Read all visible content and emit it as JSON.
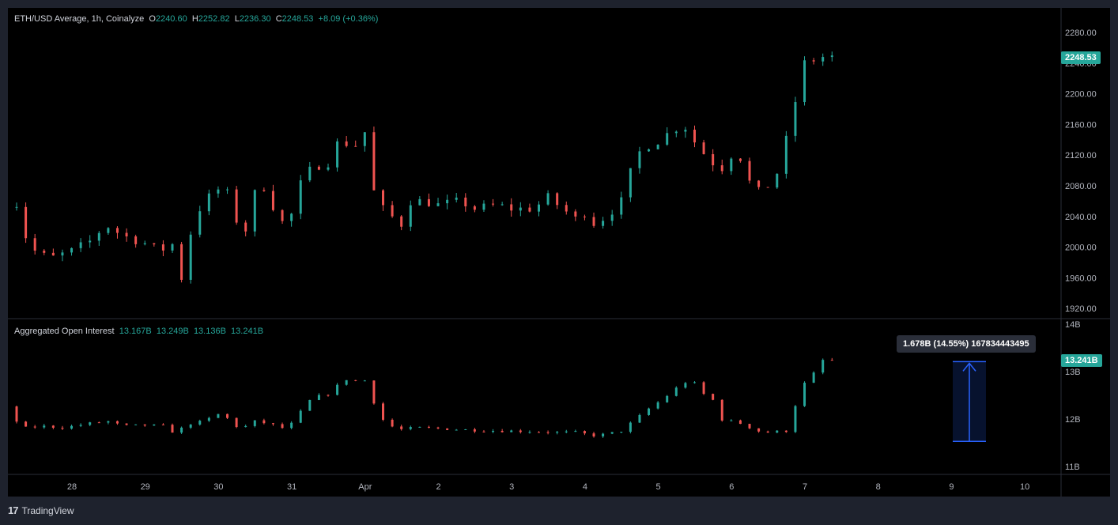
{
  "price_legend": {
    "title": "ETH/USD Average, 1h, Coinalyze",
    "open_label": "O",
    "open": "2240.60",
    "high_label": "H",
    "high": "2252.82",
    "low_label": "L",
    "low": "2236.30",
    "close_label": "C",
    "close": "2248.53",
    "change": "+8.09 (+0.36%)"
  },
  "oi_legend": {
    "title": "Aggregated Open Interest",
    "v1": "13.167B",
    "v2": "13.249B",
    "v3": "13.136B",
    "v4": "13.241B"
  },
  "price_tag": "2248.53",
  "oi_tag": "13.241B",
  "measure": {
    "label": "1.678B (14.55%) 167834443495",
    "value": 1.678,
    "from": 11.53,
    "to": 13.21
  },
  "brand": {
    "name": "TradingView",
    "mark": "17"
  },
  "colors": {
    "up": "#26a69a",
    "down": "#ef5350",
    "measure": "#2962ff",
    "axis_text": "#b2b5be"
  },
  "chart_data": {
    "type": "candlestick",
    "x_tick_labels": [
      "28",
      "29",
      "30",
      "31",
      "Apr",
      "2",
      "3",
      "4",
      "5",
      "6",
      "7",
      "8",
      "9",
      "10"
    ],
    "price_axis": {
      "ticks": [
        "2280.00",
        "2240.00",
        "2200.00",
        "2160.00",
        "2120.00",
        "2080.00",
        "2040.00",
        "2000.00",
        "1960.00",
        "1920.00"
      ],
      "range": [
        1905,
        2300
      ]
    },
    "oi_axis": {
      "ticks": [
        "14B",
        "13B",
        "12B",
        "11B"
      ],
      "range": [
        10.95,
        14.0
      ]
    },
    "price_anchors": [
      [
        0,
        2060
      ],
      [
        0.3,
        2055
      ],
      [
        0.4,
        2000
      ],
      [
        0.7,
        1985
      ],
      [
        1.0,
        1995
      ],
      [
        1.3,
        2010
      ],
      [
        1.45,
        2030
      ],
      [
        1.7,
        2015
      ],
      [
        2.0,
        2005
      ],
      [
        2.2,
        1995
      ],
      [
        2.4,
        2005
      ],
      [
        2.5,
        1960
      ],
      [
        2.65,
        2030
      ],
      [
        2.8,
        2060
      ],
      [
        3.0,
        2075
      ],
      [
        3.1,
        2080
      ],
      [
        3.2,
        2040
      ],
      [
        3.4,
        2020
      ],
      [
        3.5,
        2070
      ],
      [
        3.65,
        2080
      ],
      [
        3.8,
        2040
      ],
      [
        3.95,
        2025
      ],
      [
        4.05,
        2060
      ],
      [
        4.15,
        2090
      ],
      [
        4.3,
        2105
      ],
      [
        4.5,
        2110
      ],
      [
        4.65,
        2140
      ],
      [
        4.85,
        2130
      ],
      [
        5.0,
        2150
      ],
      [
        5.05,
        2110
      ],
      [
        5.15,
        2060
      ],
      [
        5.3,
        2045
      ],
      [
        5.5,
        2030
      ],
      [
        5.6,
        2060
      ],
      [
        5.8,
        2060
      ],
      [
        6.0,
        2055
      ],
      [
        6.3,
        2060
      ],
      [
        6.5,
        2050
      ],
      [
        6.8,
        2055
      ],
      [
        7.0,
        2050
      ],
      [
        7.3,
        2050
      ],
      [
        7.5,
        2065
      ],
      [
        7.7,
        2050
      ],
      [
        7.9,
        2035
      ],
      [
        8.0,
        2045
      ],
      [
        8.1,
        2030
      ],
      [
        8.3,
        2040
      ],
      [
        8.5,
        2060
      ],
      [
        8.7,
        2120
      ],
      [
        8.9,
        2135
      ],
      [
        9.05,
        2140
      ],
      [
        9.15,
        2150
      ],
      [
        9.35,
        2160
      ],
      [
        9.55,
        2130
      ],
      [
        9.7,
        2115
      ],
      [
        9.85,
        2100
      ],
      [
        10.0,
        2120
      ],
      [
        10.1,
        2125
      ],
      [
        10.2,
        2090
      ],
      [
        10.4,
        2070
      ],
      [
        10.5,
        2080
      ],
      [
        10.65,
        2100
      ],
      [
        10.75,
        2140
      ],
      [
        10.9,
        2200
      ],
      [
        11.0,
        2240
      ],
      [
        11.25,
        2248
      ]
    ],
    "oi_anchors": [
      [
        0,
        12.2
      ],
      [
        0.15,
        12.25
      ],
      [
        0.3,
        11.8
      ],
      [
        0.6,
        11.85
      ],
      [
        0.9,
        11.82
      ],
      [
        1.2,
        11.9
      ],
      [
        1.5,
        11.95
      ],
      [
        1.7,
        11.85
      ],
      [
        2.0,
        11.87
      ],
      [
        2.3,
        11.85
      ],
      [
        2.4,
        11.7
      ],
      [
        2.6,
        11.9
      ],
      [
        2.8,
        11.95
      ],
      [
        3.0,
        12.1
      ],
      [
        3.1,
        12.05
      ],
      [
        3.3,
        11.78
      ],
      [
        3.5,
        11.95
      ],
      [
        3.7,
        11.9
      ],
      [
        3.9,
        11.8
      ],
      [
        4.05,
        11.95
      ],
      [
        4.2,
        12.35
      ],
      [
        4.4,
        12.5
      ],
      [
        4.55,
        12.55
      ],
      [
        4.7,
        12.85
      ],
      [
        4.9,
        12.8
      ],
      [
        5.05,
        12.82
      ],
      [
        5.15,
        12.2
      ],
      [
        5.3,
        11.88
      ],
      [
        5.5,
        11.78
      ],
      [
        5.7,
        11.82
      ],
      [
        6.0,
        11.8
      ],
      [
        6.3,
        11.78
      ],
      [
        6.6,
        11.76
      ],
      [
        7.0,
        11.75
      ],
      [
        7.3,
        11.74
      ],
      [
        7.6,
        11.72
      ],
      [
        7.9,
        11.72
      ],
      [
        8.1,
        11.65
      ],
      [
        8.3,
        11.68
      ],
      [
        8.5,
        11.75
      ],
      [
        8.7,
        12.0
      ],
      [
        8.9,
        12.25
      ],
      [
        9.05,
        12.4
      ],
      [
        9.25,
        12.65
      ],
      [
        9.45,
        12.85
      ],
      [
        9.6,
        12.55
      ],
      [
        9.75,
        12.4
      ],
      [
        9.85,
        12.0
      ],
      [
        10.0,
        11.95
      ],
      [
        10.15,
        11.9
      ],
      [
        10.35,
        11.75
      ],
      [
        10.5,
        11.72
      ],
      [
        10.75,
        11.75
      ],
      [
        10.85,
        12.2
      ],
      [
        11.0,
        12.75
      ],
      [
        11.15,
        13.0
      ],
      [
        11.25,
        13.24
      ]
    ]
  }
}
